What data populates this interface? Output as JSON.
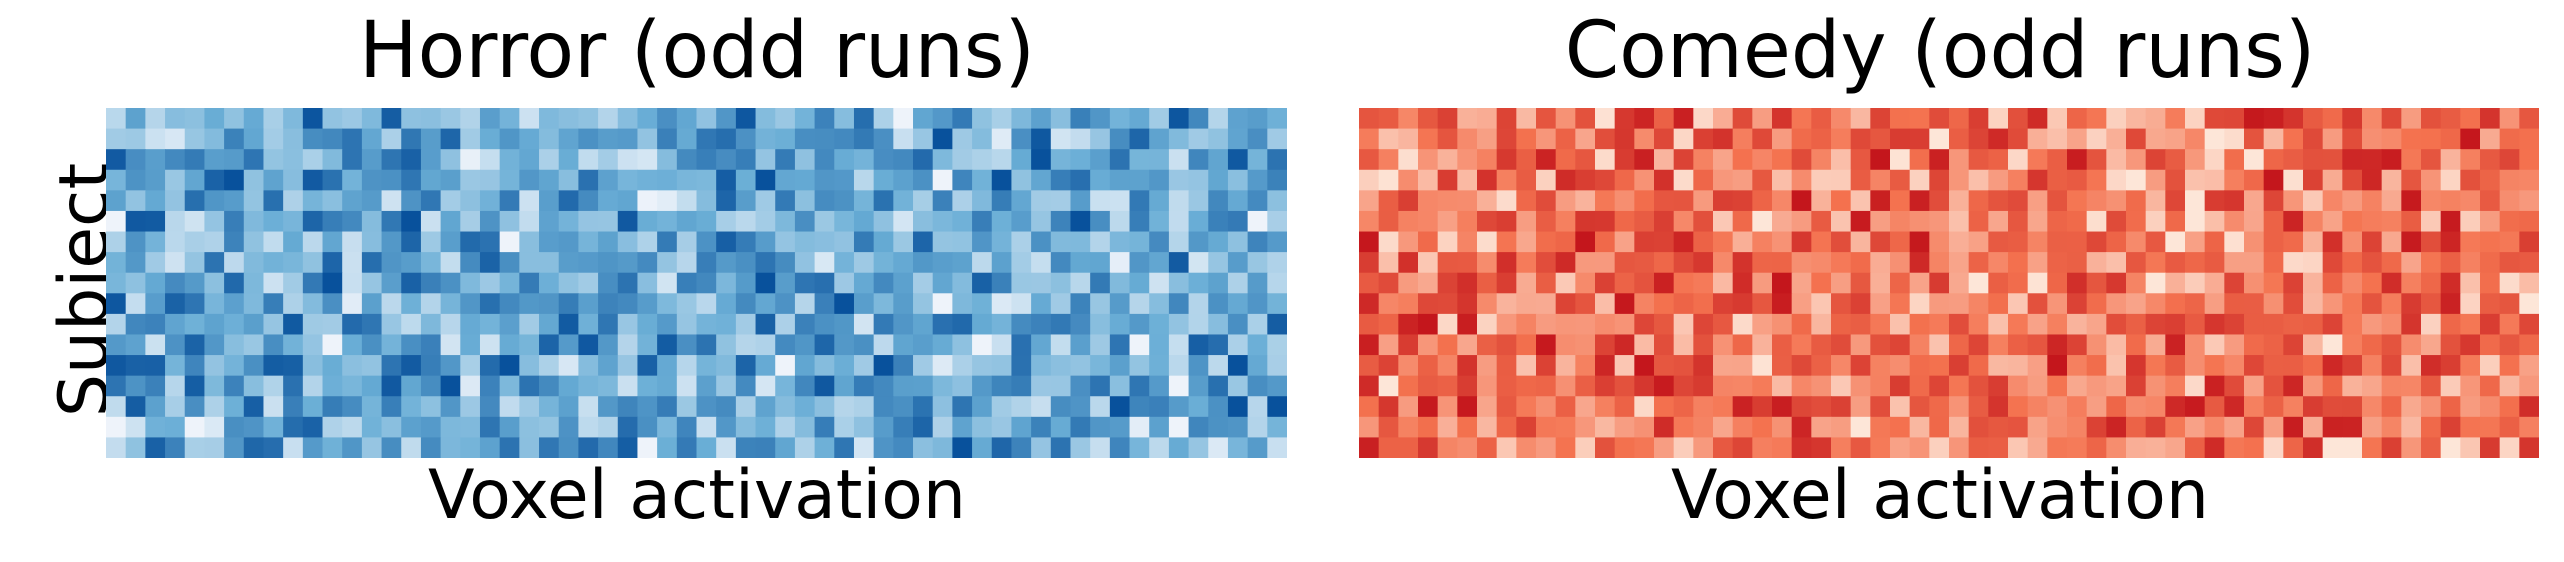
{
  "chart_data": [
    {
      "type": "heatmap",
      "title": "Horror (odd runs)",
      "xlabel": "Voxel activation",
      "ylabel": "Subject",
      "colormap": "Blues",
      "color_low": "#eef3fa",
      "color_mid": "#6aaed6",
      "color_high": "#08519c",
      "n_rows": 17,
      "n_cols": 60,
      "value_range": [
        0,
        1
      ],
      "tick_labels": false,
      "seed": 11
    },
    {
      "type": "heatmap",
      "title": "Comedy (odd runs)",
      "xlabel": "Voxel activation",
      "ylabel": "",
      "colormap": "Reds",
      "color_low": "#fde6d8",
      "color_mid": "#f4724f",
      "color_high": "#c4161c",
      "n_rows": 17,
      "n_cols": 60,
      "value_range": [
        0,
        1
      ],
      "tick_labels": false,
      "seed": 29
    }
  ]
}
